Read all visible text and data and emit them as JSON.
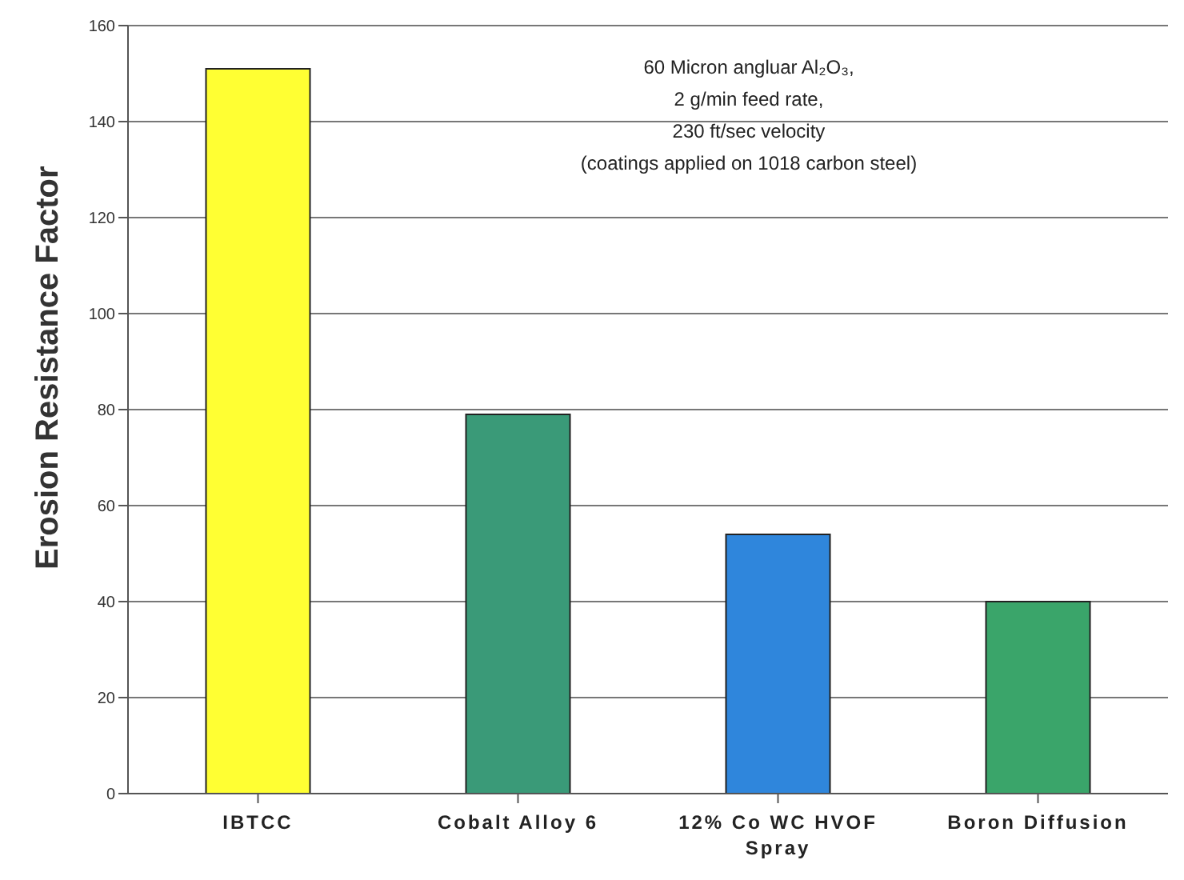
{
  "chart_data": {
    "type": "bar",
    "ylabel": "Erosion Resistance Factor",
    "categories": [
      "IBTCC",
      "Cobalt Alloy 6",
      "12% Co WC HVOF Spray",
      "Boron Diffusion"
    ],
    "values": [
      151,
      79,
      54,
      40
    ],
    "colors": [
      "#ffff33",
      "#3a9a78",
      "#2f86dc",
      "#3aa56a"
    ],
    "ylim": [
      0,
      160
    ],
    "yticks": [
      0,
      20,
      40,
      60,
      80,
      100,
      120,
      140,
      160
    ],
    "grid": "y",
    "annotations": [
      "60 Micron angluar Al₂O₃,",
      "2 g/min feed rate,",
      "230 ft/sec velocity",
      "(coatings applied on 1018 carbon steel)"
    ]
  }
}
